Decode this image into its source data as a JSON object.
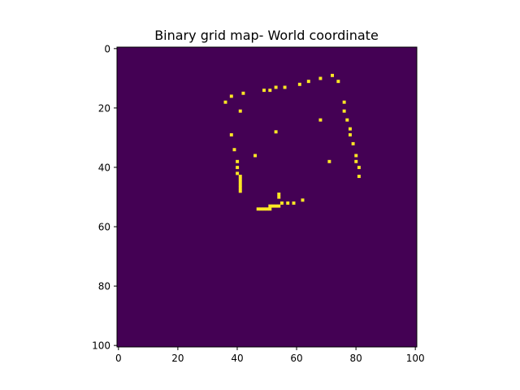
{
  "chart_data": {
    "type": "heatmap",
    "title": "Binary grid map- World coordinate",
    "xlabel": "",
    "ylabel": "",
    "grid_size": [
      101,
      101
    ],
    "xlim": [
      -0.5,
      100.5
    ],
    "ylim": [
      100.5,
      -0.5
    ],
    "xticks": [
      0,
      20,
      40,
      60,
      80,
      100
    ],
    "yticks": [
      0,
      20,
      40,
      60,
      80,
      100
    ],
    "grid": false,
    "colormap": "viridis",
    "background_value": 0,
    "occupied_value": 1,
    "colors": {
      "background": "#440154",
      "occupied": "#fde725",
      "frame": "#000000"
    },
    "occupied_cells": [
      [
        36,
        18
      ],
      [
        38,
        16
      ],
      [
        42,
        15
      ],
      [
        41,
        21
      ],
      [
        38,
        29
      ],
      [
        39,
        34
      ],
      [
        49,
        14
      ],
      [
        51,
        14
      ],
      [
        53,
        13
      ],
      [
        56,
        13
      ],
      [
        61,
        12
      ],
      [
        64,
        11
      ],
      [
        68,
        10
      ],
      [
        72,
        9
      ],
      [
        74,
        11
      ],
      [
        76,
        18
      ],
      [
        76,
        21
      ],
      [
        77,
        24
      ],
      [
        78,
        27
      ],
      [
        78,
        29
      ],
      [
        79,
        32
      ],
      [
        80,
        36
      ],
      [
        80,
        38
      ],
      [
        81,
        40
      ],
      [
        81,
        43
      ],
      [
        40,
        38
      ],
      [
        40,
        40
      ],
      [
        40,
        42
      ],
      [
        41,
        43
      ],
      [
        41,
        44
      ],
      [
        41,
        45
      ],
      [
        41,
        46
      ],
      [
        41,
        47
      ],
      [
        41,
        48
      ],
      [
        46,
        36
      ],
      [
        53,
        28
      ],
      [
        68,
        24
      ],
      [
        71,
        38
      ],
      [
        54,
        49
      ],
      [
        54,
        50
      ],
      [
        55,
        52
      ],
      [
        57,
        52
      ],
      [
        59,
        52
      ],
      [
        62,
        51
      ],
      [
        47,
        54
      ],
      [
        48,
        54
      ],
      [
        49,
        54
      ],
      [
        50,
        54
      ],
      [
        51,
        53
      ],
      [
        51,
        54
      ],
      [
        52,
        53
      ],
      [
        53,
        53
      ],
      [
        54,
        53
      ]
    ]
  }
}
